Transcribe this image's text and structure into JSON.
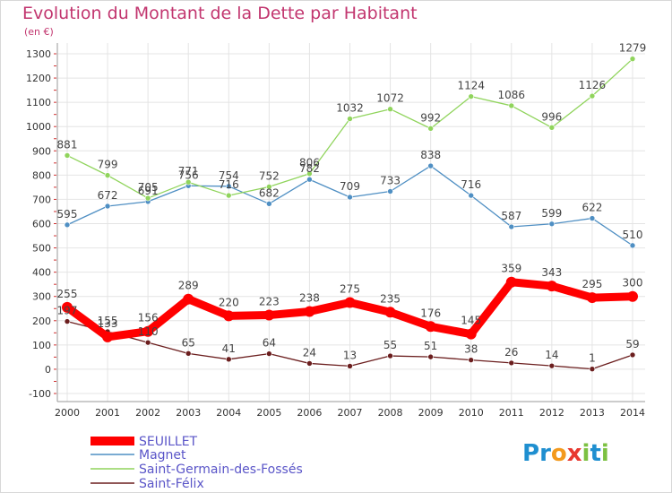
{
  "title": "Evolution du Montant de la Dette par Habitant",
  "unit": "(en €)",
  "logo": {
    "text": "Proxiti",
    "letters": [
      "P",
      "r",
      "o",
      "x",
      "i",
      "t",
      "i"
    ],
    "colors": [
      "#1f8fd0",
      "#1f8fd0",
      "#f39a1e",
      "#e8382f",
      "#7cc142",
      "#1f8fd0",
      "#7cc142"
    ]
  },
  "chart_data": {
    "type": "line",
    "x": [
      2000,
      2001,
      2002,
      2003,
      2004,
      2005,
      2006,
      2007,
      2008,
      2009,
      2010,
      2011,
      2012,
      2013,
      2014
    ],
    "ylim": [
      -100,
      1300
    ],
    "yticks": [
      -100,
      0,
      100,
      200,
      300,
      400,
      500,
      600,
      700,
      800,
      900,
      1000,
      1100,
      1200,
      1300
    ],
    "grid": true,
    "legend_position": "bottom-left",
    "series": [
      {
        "name": "Saint-Félix",
        "color": "#6b1e1e",
        "values": [
          197,
          155,
          110,
          65,
          41,
          64,
          24,
          13,
          55,
          51,
          38,
          26,
          14,
          1,
          59
        ]
      },
      {
        "name": "Magnet",
        "color": "#4f8fc3",
        "values": [
          595,
          672,
          691,
          756,
          754,
          682,
          782,
          709,
          733,
          838,
          716,
          587,
          599,
          622,
          510
        ]
      },
      {
        "name": "Saint-Germain-des-Fossés",
        "color": "#90d45c",
        "values": [
          881,
          799,
          705,
          771,
          716,
          752,
          806,
          1032,
          1072,
          992,
          1124,
          1086,
          996,
          1126,
          1279
        ]
      },
      {
        "name": "SEUILLET",
        "color": "#ff0000",
        "values": [
          255,
          133,
          156,
          289,
          220,
          223,
          238,
          275,
          235,
          176,
          145,
          359,
          343,
          295,
          300
        ]
      }
    ],
    "legend": [
      "SEUILLET",
      "Magnet",
      "Saint-Germain-des-Fossés",
      "Saint-Félix"
    ]
  }
}
